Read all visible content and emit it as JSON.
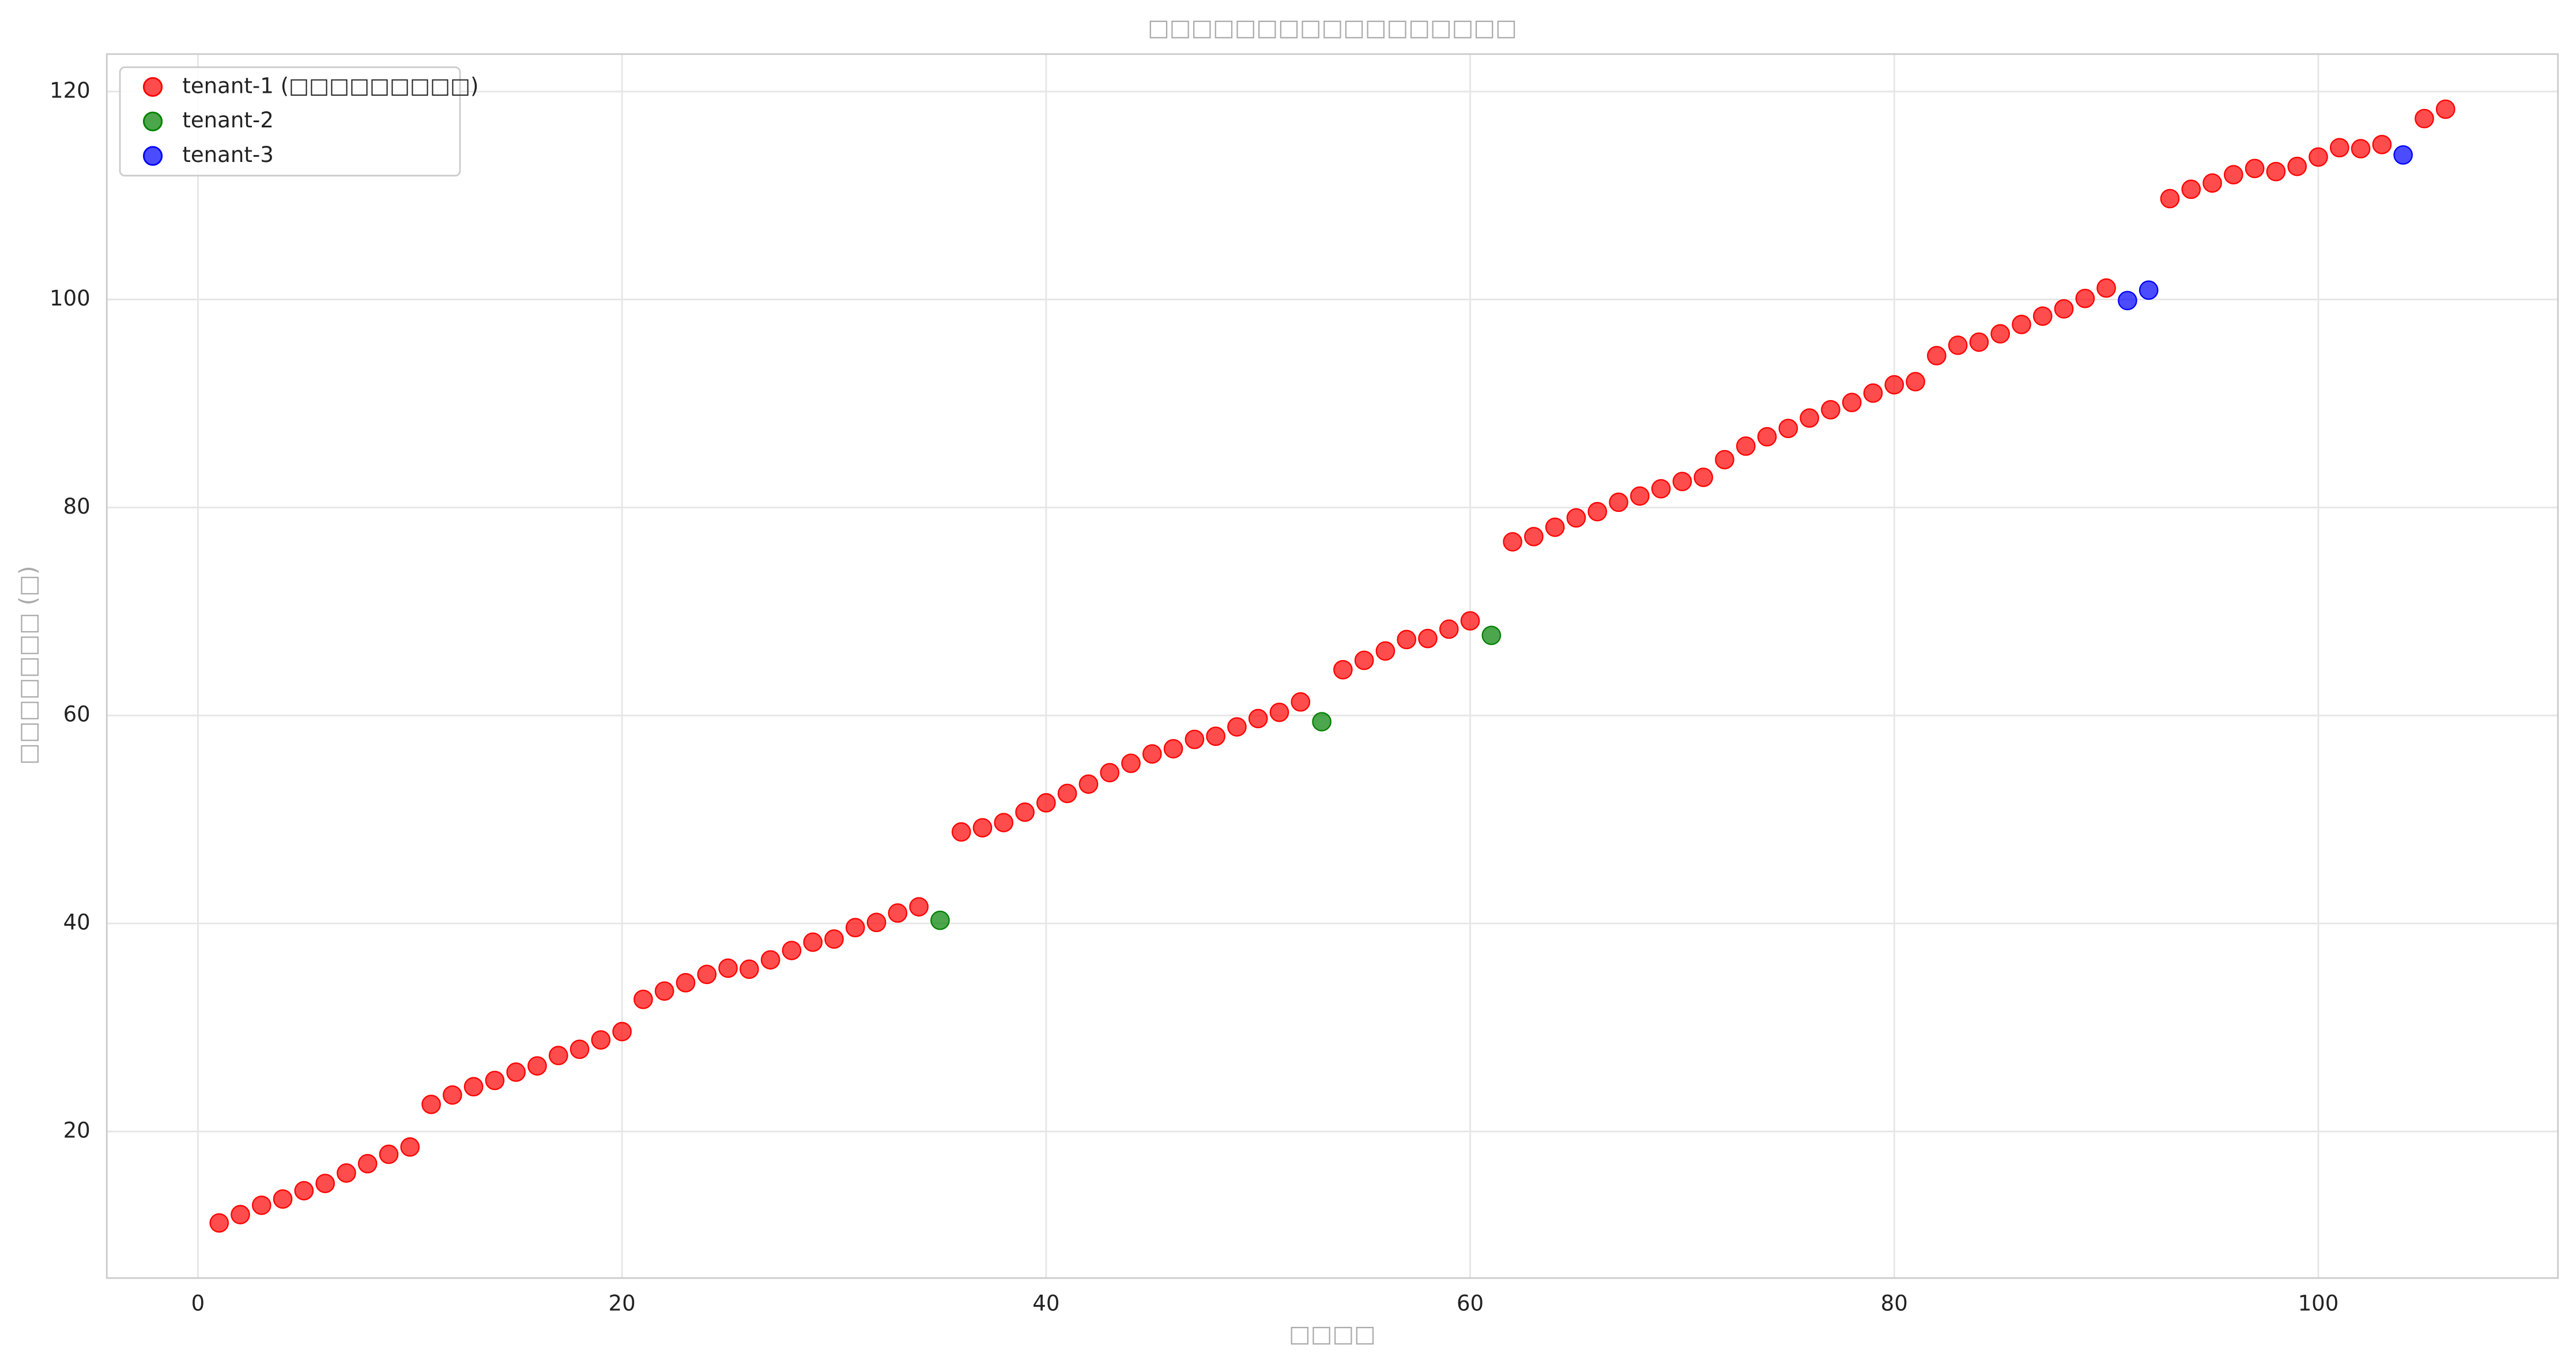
{
  "chart_data": {
    "type": "scatter",
    "title": "□□□□□□□□□□□□□□□□□",
    "xlabel": "□□□□",
    "ylabel": "□□□□□□□ (□)",
    "xlim": [
      -4.3,
      111.3
    ],
    "ylim": [
      5.9,
      123.6
    ],
    "xticks": [
      0,
      20,
      40,
      60,
      80,
      100
    ],
    "yticks": [
      20,
      40,
      60,
      80,
      100,
      120
    ],
    "grid": true,
    "legend": "upper-left",
    "series": [
      {
        "name": "tenant-1 (□□□□□□□□□)",
        "color": "#ff0000",
        "x": [
          1,
          2,
          3,
          4,
          5,
          6,
          7,
          8,
          9,
          10,
          11,
          12,
          13,
          14,
          15,
          16,
          17,
          18,
          19,
          20,
          21,
          22,
          23,
          24,
          25,
          26,
          27,
          28,
          29,
          30,
          31,
          32,
          33,
          34,
          36,
          37,
          38,
          39,
          40,
          41,
          42,
          43,
          44,
          45,
          46,
          47,
          48,
          49,
          50,
          51,
          52,
          54,
          55,
          56,
          57,
          58,
          59,
          60,
          62,
          63,
          64,
          65,
          66,
          67,
          68,
          69,
          70,
          71,
          72,
          73,
          74,
          75,
          76,
          77,
          78,
          79,
          80,
          81,
          82,
          83,
          84,
          85,
          86,
          87,
          88,
          89,
          90,
          93,
          94,
          95,
          96,
          97,
          98,
          99,
          100,
          101,
          102,
          103,
          105,
          106
        ],
        "values": [
          11.2,
          12.0,
          12.9,
          13.5,
          14.3,
          15.0,
          16.0,
          16.9,
          17.8,
          18.5,
          22.6,
          23.5,
          24.3,
          24.9,
          25.7,
          26.3,
          27.3,
          27.9,
          28.8,
          29.6,
          32.7,
          33.5,
          34.3,
          35.1,
          35.7,
          35.6,
          36.5,
          37.4,
          38.2,
          38.5,
          39.6,
          40.1,
          41.0,
          41.6,
          48.8,
          49.2,
          49.7,
          50.7,
          51.6,
          52.5,
          53.4,
          54.5,
          55.4,
          56.3,
          56.8,
          57.7,
          58.0,
          58.9,
          59.7,
          60.3,
          61.3,
          64.4,
          65.3,
          66.2,
          67.3,
          67.4,
          68.3,
          69.1,
          76.7,
          77.2,
          78.1,
          79.0,
          79.6,
          80.5,
          81.1,
          81.8,
          82.5,
          82.9,
          84.6,
          85.9,
          86.8,
          87.6,
          88.6,
          89.4,
          90.1,
          91.0,
          91.8,
          92.1,
          94.6,
          95.6,
          95.9,
          96.7,
          97.6,
          98.4,
          99.1,
          100.1,
          101.1,
          109.7,
          110.6,
          111.2,
          112.0,
          112.6,
          112.3,
          112.8,
          113.7,
          114.6,
          114.5,
          114.9,
          117.4,
          118.3
        ]
      },
      {
        "name": "tenant-2",
        "color": "#008000",
        "x": [
          35,
          53,
          61
        ],
        "values": [
          40.3,
          59.4,
          67.7
        ]
      },
      {
        "name": "tenant-3",
        "color": "#0000ff",
        "x": [
          91,
          92,
          104
        ],
        "values": [
          99.9,
          100.9,
          113.9
        ]
      }
    ]
  }
}
